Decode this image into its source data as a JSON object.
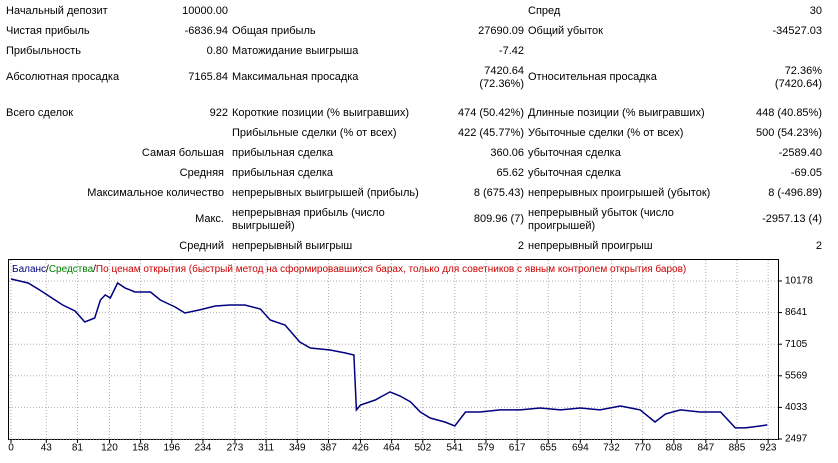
{
  "report": {
    "rows": [
      {
        "label": "Начальный депозит",
        "value": "10000.00",
        "label3": "Спред",
        "value3": "30"
      },
      {
        "label": "Чистая прибыль",
        "value": "-6836.94",
        "label2": "Общая прибыль",
        "value2": "27690.09",
        "label3": "Общий убыток",
        "value3": "-34527.03"
      },
      {
        "label": "Прибыльность",
        "value": "0.80",
        "label2": "Матожидание выигрыша",
        "value2": "-7.42"
      },
      {
        "label": "Абсолютная просадка",
        "value": "7165.84",
        "label2": "Максимальная просадка",
        "value2": "7420.64\n(72.36%)",
        "label3": "Относительная просадка",
        "value3": "72.36%\n(7420.64)"
      },
      {
        "label": "Всего сделок",
        "value": "922",
        "label2": "Короткие позиции (% выигравших)",
        "value2": "474 (50.42%)",
        "label3": "Длинные позиции (% выигравших)",
        "value3": "448 (40.85%)"
      },
      {
        "label2": "Прибыльные сделки (% от всех)",
        "value2": "422 (45.77%)",
        "label3": "Убыточные сделки (% от всех)",
        "value3": "500 (54.23%)"
      },
      {
        "group": "Самая большая",
        "label2": "прибыльная сделка",
        "value2": "360.06",
        "label3": "убыточная сделка",
        "value3": "-2589.40"
      },
      {
        "group": "Средняя",
        "label2": "прибыльная сделка",
        "value2": "65.62",
        "label3": "убыточная сделка",
        "value3": "-69.05"
      },
      {
        "group": "Максимальное количество",
        "label2": "непрерывных выигрышей (прибыль)",
        "value2": "8 (675.43)",
        "label3": "непрерывных проигрышей (убыток)",
        "value3": "8 (-496.89)"
      },
      {
        "group": "Макс.",
        "label2": "непрерывная прибыль (число\nвыигрышей)",
        "value2": "809.96 (7)",
        "label3": "непрерывный убыток (число\nпроигрышей)",
        "value3": "-2957.13 (4)"
      },
      {
        "group": "Средний",
        "label2": "непрерывный выигрыш",
        "value2": "2",
        "label3": "непрерывный проигрыш",
        "value3": "2"
      }
    ]
  },
  "chart_data": {
    "type": "line",
    "separator": "/",
    "equity": {
      "name": "Средства",
      "color": "#008000"
    },
    "mode": {
      "text": "По ценам открытия (быстрый метод на сформировавшихся барах, только для советников с явным контролем открытия баров)",
      "color": "#cc0000"
    },
    "x": [
      0,
      21,
      35,
      48,
      63,
      78,
      90,
      102,
      109,
      115,
      121,
      130,
      139,
      151,
      170,
      182,
      200,
      212,
      230,
      249,
      267,
      285,
      304,
      316,
      334,
      352,
      365,
      389,
      407,
      418,
      421,
      426,
      444,
      462,
      474,
      487,
      499,
      511,
      529,
      541,
      554,
      572,
      596,
      621,
      645,
      670,
      694,
      718,
      743,
      767,
      785,
      798,
      816,
      840,
      865,
      883,
      895,
      913,
      922
    ],
    "series": [
      {
        "name": "Баланс",
        "color": "#000080",
        "values": [
          10275,
          10080,
          9740,
          9400,
          9010,
          8720,
          8185,
          8380,
          9255,
          9500,
          9350,
          10080,
          9840,
          9640,
          9640,
          9255,
          8915,
          8620,
          8770,
          8960,
          9010,
          9010,
          8815,
          8280,
          8040,
          7210,
          6920,
          6825,
          6680,
          6580,
          3910,
          4150,
          4395,
          4785,
          4590,
          4300,
          3810,
          3520,
          3325,
          3130,
          3810,
          3810,
          3910,
          3910,
          4005,
          3910,
          4005,
          3910,
          4100,
          3910,
          3325,
          3715,
          3910,
          3810,
          3810,
          3035,
          3035,
          3130,
          3180
        ]
      }
    ],
    "xlim": [
      0,
      935
    ],
    "ylim": [
      2497,
      11100
    ],
    "xticks": [
      0,
      43,
      81,
      120,
      158,
      196,
      234,
      273,
      311,
      349,
      387,
      426,
      464,
      502,
      541,
      579,
      617,
      655,
      694,
      732,
      770,
      808,
      847,
      885,
      923
    ],
    "yticks": [
      2497,
      4033,
      5569,
      7105,
      8641,
      10178
    ],
    "grid": true
  }
}
